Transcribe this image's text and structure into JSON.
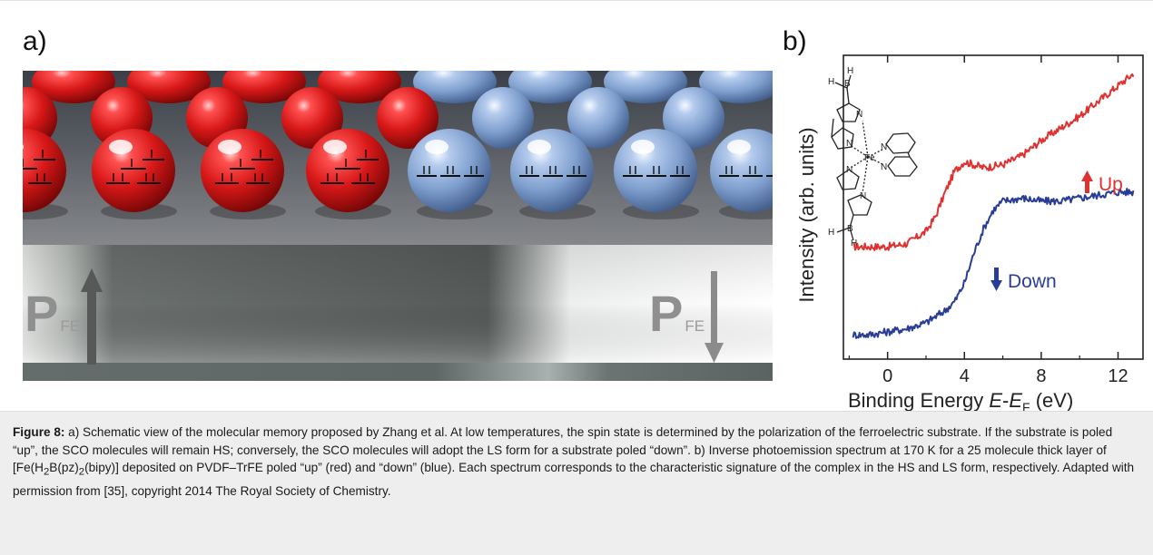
{
  "panel_a": {
    "label": "a)",
    "pfe_left": {
      "letter": "P",
      "sub": "FE"
    },
    "pfe_right": {
      "letter": "P",
      "sub": "FE"
    },
    "colors": {
      "hs_sphere": "#d81e1e",
      "ls_sphere": "#8fb0de",
      "substrate_dark": "#5a5e5d"
    }
  },
  "panel_b": {
    "label": "b)",
    "legend_up": "Up",
    "legend_down": "Down",
    "structure_atoms": {
      "fe": "Fe",
      "n": "N",
      "b": "B",
      "h": "H"
    }
  },
  "chart_data": {
    "type": "line",
    "xlabel_main": "Binding Energy ",
    "xlabel_e": "E",
    "xlabel_dash": "-",
    "xlabel_ef": "E",
    "xlabel_ef_sub": "F",
    "xlabel_unit": " (eV)",
    "ylabel": "Intensity (arb. units)",
    "xlim": [
      -2.3,
      13.3
    ],
    "x_ticks": [
      "0",
      "4",
      "8",
      "12"
    ],
    "x_tick_values": [
      0,
      4,
      8,
      12
    ],
    "series": [
      {
        "name": "Up",
        "color": "#e03131",
        "x": [
          -1.8,
          -1,
          0,
          1,
          2,
          2.5,
          3,
          3.5,
          4,
          4.5,
          5,
          6,
          7,
          8,
          9,
          10,
          11,
          12,
          12.8
        ],
        "y": [
          0.37,
          0.37,
          0.37,
          0.38,
          0.42,
          0.47,
          0.55,
          0.62,
          0.65,
          0.64,
          0.63,
          0.64,
          0.67,
          0.72,
          0.76,
          0.8,
          0.85,
          0.9,
          0.94
        ]
      },
      {
        "name": "Down",
        "color": "#2a3d96",
        "x": [
          -1.8,
          -1,
          0,
          1,
          2,
          3,
          3.5,
          4,
          4.5,
          5,
          5.5,
          6,
          7,
          8,
          9,
          10,
          11,
          12,
          12.8
        ],
        "y": [
          0.08,
          0.08,
          0.09,
          0.1,
          0.12,
          0.16,
          0.19,
          0.25,
          0.35,
          0.43,
          0.49,
          0.52,
          0.53,
          0.52,
          0.52,
          0.53,
          0.54,
          0.55,
          0.55
        ]
      }
    ]
  },
  "caption": {
    "figure_label": "Figure 8:",
    "text_1": " a) Schematic view of the molecular memory proposed by Zhang et al. At low temperatures, the spin state is determined by the polarization of the ferroelectric substrate. If the substrate is poled “up”, the SCO molecules will remain HS; conversely, the SCO molecules will adopt the LS form for a substrate poled “down”. b) Inverse photoemission spectrum at 170 K for a 25 molecule thick layer of [Fe(H",
    "sub_1": "2",
    "text_2": "B(pz)",
    "sub_2": "2",
    "text_3": "(bipy)] deposited on PVDF–TrFE poled “up” (red) and “down” (blue). Each spectrum corresponds to the characteristic signature of the complex in the HS and LS form, respectively. Adapted with permission from [35], copyright 2014 The Royal Society of Chemistry."
  }
}
